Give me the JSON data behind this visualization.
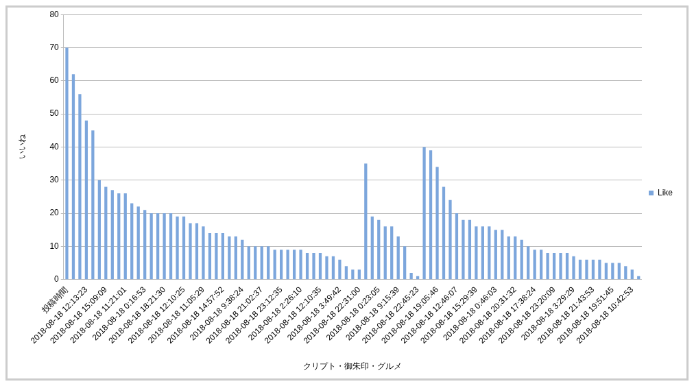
{
  "chart_data": {
    "type": "bar",
    "categories": [
      "投稿時間",
      null,
      null,
      "2018-08-18 12:13:23",
      null,
      null,
      "2018-08-18 15:09:09",
      null,
      null,
      "2018-08-18 11:21:01",
      null,
      null,
      "2018-08-18 0:16:53",
      null,
      null,
      "2018-08-18 18:21:30",
      null,
      null,
      "2018-08-18 12:10:25",
      null,
      null,
      "2018-08-18 11:05:29",
      null,
      null,
      "2018-08-18 14:57:52",
      null,
      null,
      "2018-08-18 9:38:24",
      null,
      null,
      "2018-08-18 21:02:37",
      null,
      null,
      "2018-08-18 23:12:35",
      null,
      null,
      "2018-08-18 2:26:10",
      null,
      null,
      "2018-08-18 12:10:35",
      null,
      null,
      "2018-08-18 3:49:42",
      null,
      null,
      "2018-08-18 22:31:00",
      null,
      null,
      "2018-08-18 0:23:05",
      null,
      null,
      "2018-08-18 9:15:39",
      null,
      null,
      "2018-08-18 22:45:23",
      null,
      null,
      "2018-08-18 19:05:46",
      null,
      null,
      "2018-08-18 12:46:07",
      null,
      null,
      "2018-08-18 15:29:39",
      null,
      null,
      "2018-08-18 0:46:03",
      null,
      null,
      "2018-08-18 20:31:32",
      null,
      null,
      "2018-08-18 17:38:24",
      null,
      null,
      "2018-08-18 23:20:09",
      null,
      null,
      "2018-08-18 3:29:29",
      null,
      null,
      "2018-08-18 21:43:53",
      null,
      null,
      "2018-08-18 19:51:45",
      null,
      null,
      "2018-08-18 10:42:53",
      null
    ],
    "series": [
      {
        "name": "Like",
        "color": "#7ca6dc",
        "values": [
          70,
          62,
          56,
          48,
          45,
          30,
          28,
          27,
          26,
          26,
          23,
          22,
          21,
          20,
          20,
          20,
          20,
          19,
          19,
          17,
          17,
          16,
          14,
          14,
          14,
          13,
          13,
          12,
          10,
          10,
          10,
          10,
          9,
          9,
          9,
          9,
          9,
          8,
          8,
          8,
          7,
          7,
          6,
          4,
          3,
          3,
          35,
          19,
          18,
          16,
          16,
          13,
          10,
          2,
          1,
          40,
          39,
          34,
          28,
          24,
          20,
          18,
          18,
          16,
          16,
          16,
          15,
          15,
          13,
          13,
          12,
          10,
          9,
          9,
          8,
          8,
          8,
          8,
          7,
          6,
          6,
          6,
          6,
          5,
          5,
          5,
          4,
          3,
          1
        ]
      }
    ],
    "xlabel": "クリプト・御朱印・グルメ",
    "ylabel": "いいね",
    "ylim": [
      0,
      80
    ],
    "yticks": [
      0,
      10,
      20,
      30,
      40,
      50,
      60,
      70,
      80
    ],
    "grid": "y",
    "legend": "right"
  }
}
